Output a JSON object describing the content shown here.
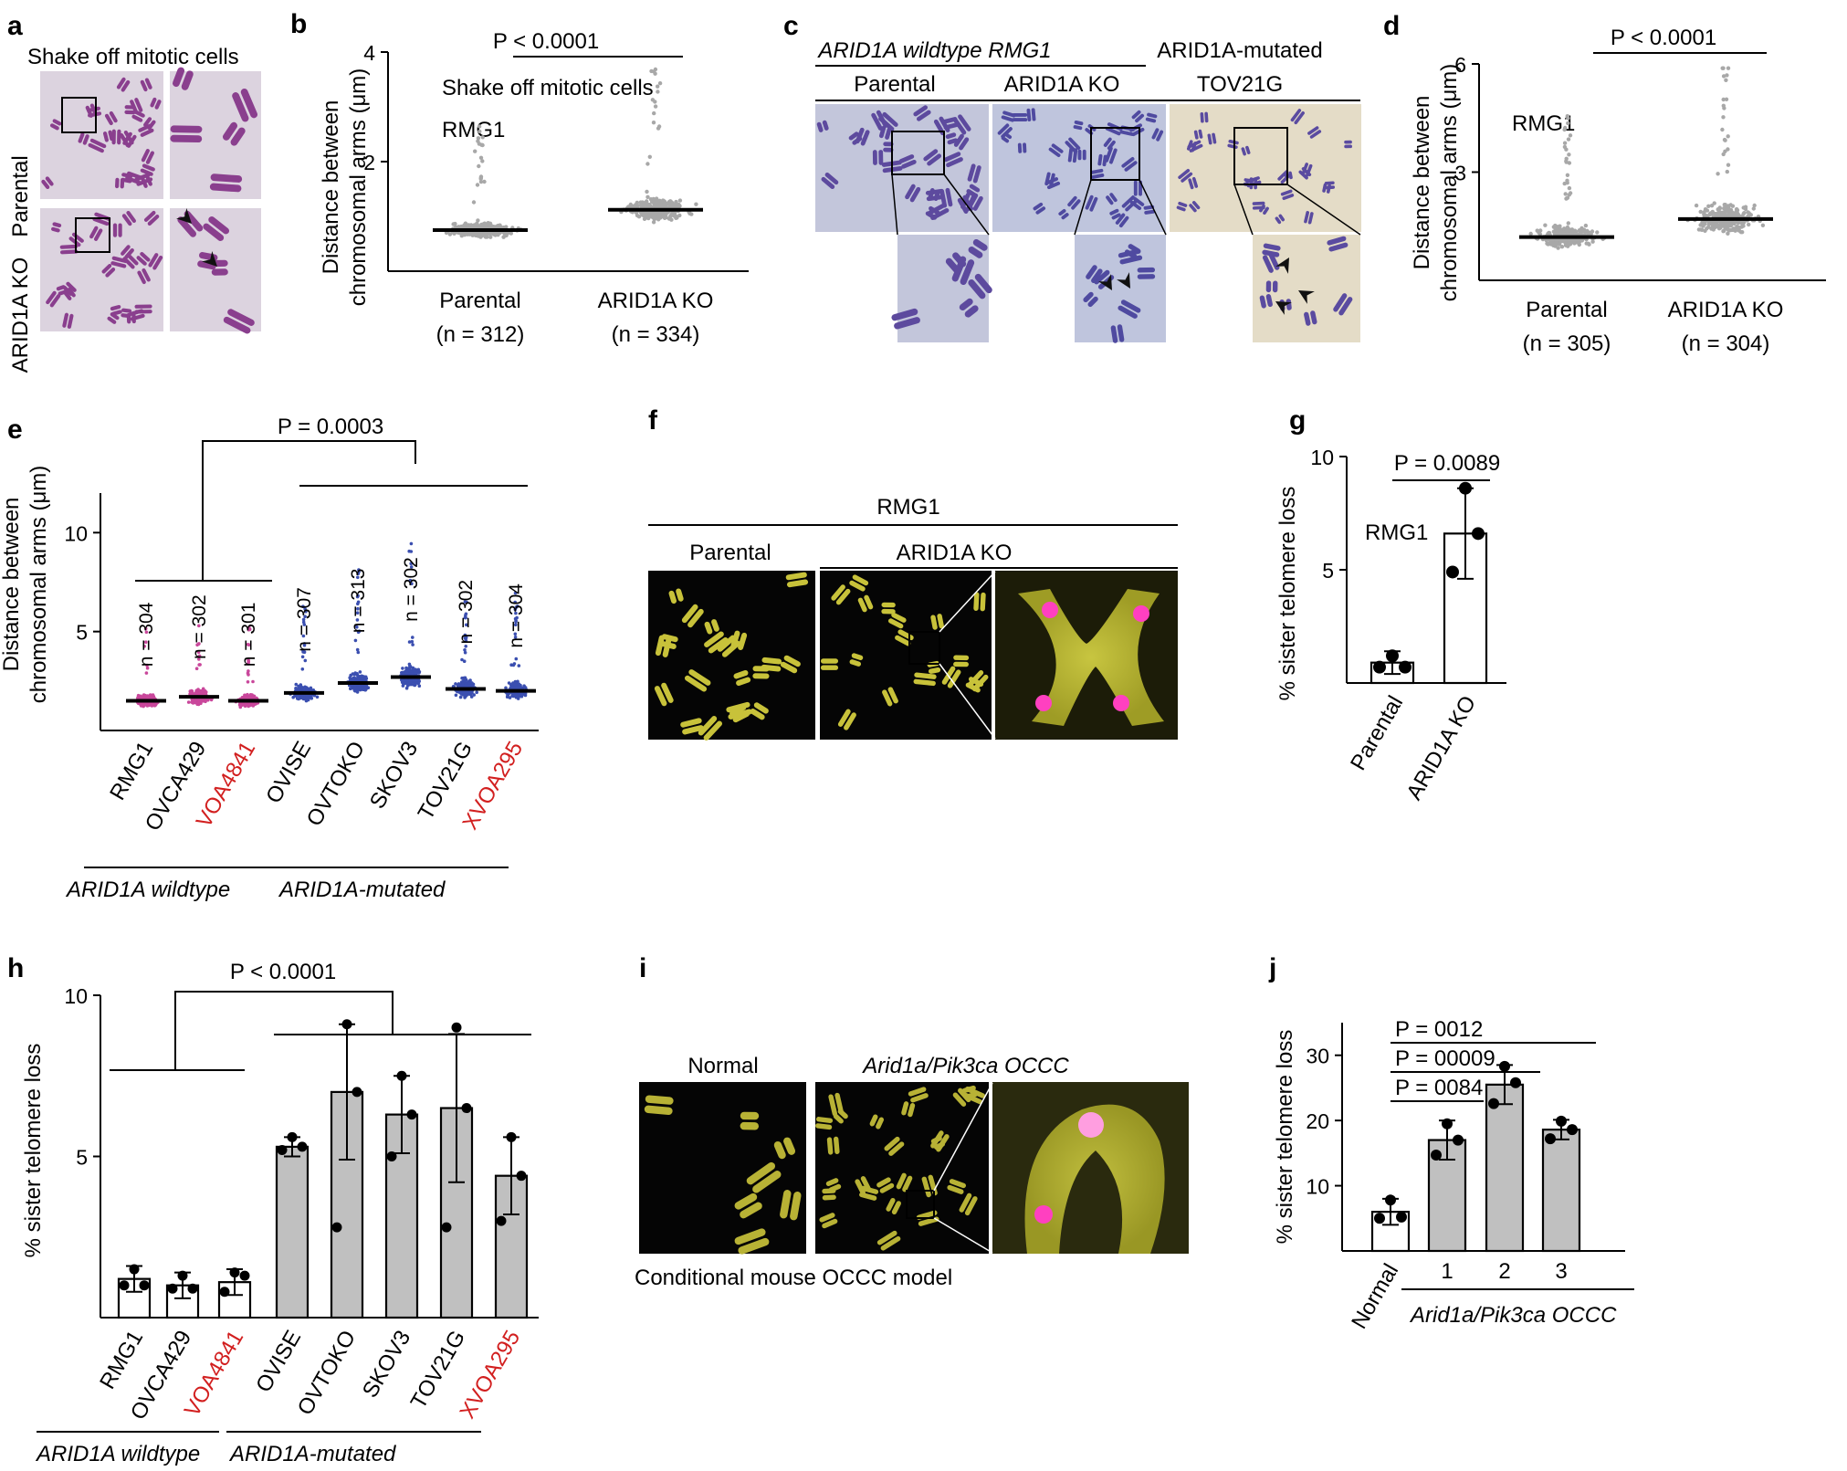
{
  "panel_labels": {
    "a": "a",
    "b": "b",
    "c": "c",
    "d": "d",
    "e": "e",
    "f": "f",
    "g": "g",
    "h": "h",
    "i": "i",
    "j": "j"
  },
  "panel_a": {
    "title": "Shake off mitotic cells",
    "row_parental": "Parental",
    "row_ko": "ARID1A KO"
  },
  "panel_b": {
    "annotation": "Shake off mitotic cells",
    "cell_line": "RMG1",
    "ylabel_line1": "Distance between",
    "ylabel_line2": "chromosomal arms (μm)",
    "pvalue": "P < 0.0001"
  },
  "panel_c": {
    "header_left": "ARID1A wildtype RMG1",
    "header_right_line1": "ARID1A-mutated",
    "header_right_line2": "TOV21G",
    "col1": "Parental",
    "col2": "ARID1A KO"
  },
  "panel_d": {
    "cell_line": "RMG1",
    "ylabel_line1": "Distance between",
    "ylabel_line2": "chromosomal arms (μm)",
    "pvalue": "P < 0.0001"
  },
  "panel_e": {
    "ylabel_line1": "Distance between",
    "ylabel_line2": "chromosomal arms (μm)",
    "pvalue": "P = 0.0003",
    "group_wt": "ARID1A wildtype",
    "group_mut": "ARID1A-mutated"
  },
  "panel_f": {
    "top": "RMG1",
    "left": "Parental",
    "right": "ARID1A KO"
  },
  "panel_g": {
    "ylabel": "% sister telomere loss",
    "cell_line": "RMG1",
    "pvalue": "P = 0.0089"
  },
  "panel_h": {
    "ylabel": "% sister telomere loss",
    "pvalue": "P < 0.0001",
    "group_wt": "ARID1A wildtype",
    "group_mut": "ARID1A-mutated"
  },
  "panel_i": {
    "left": "Normal",
    "right": "Arid1a/Pik3ca OCCC",
    "caption": "Conditional mouse OCCC model"
  },
  "panel_j": {
    "ylabel": "% sister telomere loss",
    "group": "Arid1a/Pik3ca OCCC",
    "p1": "P = 0084",
    "p2": "P = 00009",
    "p3": "P = 0012"
  },
  "chart_data": [
    {
      "panel": "b",
      "type": "scatter",
      "ylabel": "Distance between chromosomal arms (μm)",
      "ylim": [
        0,
        4
      ],
      "yticks": [
        "2",
        "4"
      ],
      "categories": [
        "Parental",
        "ARID1A KO"
      ],
      "n_labels": [
        "(n = 312)",
        "(n = 334)"
      ],
      "medians": [
        0.75,
        1.12
      ]
    },
    {
      "panel": "d",
      "type": "scatter",
      "ylabel": "Distance between chromosomal arms (μm)",
      "ylim": [
        0,
        6
      ],
      "yticks": [
        "3",
        "6"
      ],
      "categories": [
        "Parental",
        "ARID1A KO"
      ],
      "n_labels": [
        "(n = 305)",
        "(n = 304)"
      ],
      "medians": [
        1.2,
        1.7
      ]
    },
    {
      "panel": "e",
      "type": "scatter",
      "ylabel": "Distance between chromosomal arms (μm)",
      "ylim": [
        0,
        12
      ],
      "yticks": [
        "5",
        "10"
      ],
      "categories": [
        "RMG1",
        "OVCA429",
        "VOA4841",
        "OVISE",
        "OVTOKO",
        "SKOV3",
        "TOV21G",
        "XVOA295"
      ],
      "n_labels": [
        "n = 304",
        "n = 302",
        "n = 301",
        "n = 307",
        "n = 313",
        "n = 302",
        "n = 302",
        "n = 304"
      ],
      "medians": [
        1.5,
        1.7,
        1.5,
        1.9,
        2.4,
        2.7,
        2.1,
        2.0
      ],
      "series_colors": [
        "#c9479b",
        "#c9479b",
        "#c9479b",
        "#3b4fb0",
        "#3b4fb0",
        "#3b4fb0",
        "#3b4fb0",
        "#3b4fb0"
      ]
    },
    {
      "panel": "g",
      "type": "bar",
      "ylabel": "% sister telomere loss",
      "ylim": [
        0,
        10
      ],
      "yticks": [
        "5",
        "10"
      ],
      "categories": [
        "Parental",
        "ARID1A KO"
      ],
      "values": [
        0.9,
        6.6
      ],
      "sd": [
        0.5,
        2.0
      ],
      "points": [
        [
          1.2,
          0.7,
          0.7
        ],
        [
          8.6,
          6.6,
          4.9
        ]
      ]
    },
    {
      "panel": "h",
      "type": "bar",
      "ylabel": "% sister telomere loss",
      "ylim": [
        0,
        10
      ],
      "yticks": [
        "5",
        "10"
      ],
      "categories": [
        "RMG1",
        "OVCA429",
        "VOA4841",
        "OVISE",
        "OVTOKO",
        "SKOV3",
        "TOV21G",
        "XVOA295"
      ],
      "values": [
        1.2,
        1.0,
        1.1,
        5.3,
        7.0,
        6.3,
        6.5,
        4.4
      ],
      "sd": [
        0.4,
        0.4,
        0.4,
        0.3,
        2.1,
        1.2,
        2.3,
        1.2
      ],
      "points": [
        [
          1.5,
          1.0,
          1.0
        ],
        [
          1.3,
          0.9,
          0.9
        ],
        [
          1.4,
          1.3,
          0.8
        ],
        [
          5.6,
          5.3,
          5.2
        ],
        [
          9.1,
          7.0,
          2.8
        ],
        [
          7.5,
          6.3,
          5.0
        ],
        [
          9.0,
          6.5,
          2.8
        ],
        [
          5.6,
          4.4,
          3.0
        ]
      ]
    },
    {
      "panel": "j",
      "type": "bar",
      "ylabel": "% sister telomere loss",
      "ylim": [
        0,
        35
      ],
      "yticks": [
        "10",
        "20",
        "30"
      ],
      "categories": [
        "Normal",
        "1",
        "2",
        "3"
      ],
      "values": [
        6.0,
        17.0,
        25.5,
        18.6
      ],
      "sd": [
        2.0,
        3.0,
        3.0,
        1.5
      ],
      "points": [
        [
          7.8,
          5.2,
          5.0
        ],
        [
          19.5,
          17.0,
          14.7
        ],
        [
          28.3,
          25.8,
          22.6
        ],
        [
          19.9,
          18.6,
          17.2
        ]
      ]
    }
  ]
}
